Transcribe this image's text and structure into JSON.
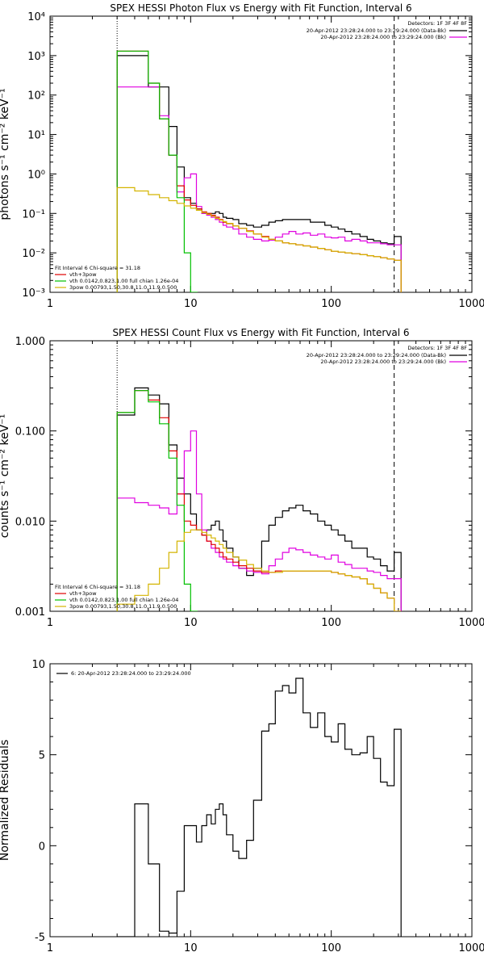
{
  "chart_data": [
    {
      "type": "line",
      "title": "SPEX HESSI Photon Flux vs Energy with Fit Function, Interval 6",
      "ylabel": "photons s⁻¹ cm⁻² keV⁻¹",
      "xlabel": "",
      "xscale": "log",
      "yscale": "log",
      "xlim": [
        1,
        1000
      ],
      "ylim": [
        0.001,
        10000
      ],
      "xticks": [
        {
          "v": 1,
          "label": "1"
        },
        {
          "v": 10,
          "label": "10"
        },
        {
          "v": 100,
          "label": "100"
        },
        {
          "v": 1000,
          "label": "1000"
        }
      ],
      "yticks": [
        {
          "v": 0.001,
          "label": "10⁻³"
        },
        {
          "v": 0.01,
          "label": "10⁻²"
        },
        {
          "v": 0.1,
          "label": "10⁻¹"
        },
        {
          "v": 1,
          "label": "10⁰"
        },
        {
          "v": 10,
          "label": "10¹"
        },
        {
          "v": 100,
          "label": "10²"
        },
        {
          "v": 1000,
          "label": "10³"
        },
        {
          "v": 10000,
          "label": "10⁴"
        }
      ],
      "vlines": [
        {
          "x": 3,
          "style": "dotted"
        },
        {
          "x": 280,
          "style": "dashed"
        }
      ],
      "legend_tr": {
        "heading": "Detectors: 1F 3F 4F 8F",
        "entries": [
          {
            "text": "20-Apr-2012 23:28:24.000 to 23:29:24.000 (Data-Bk)",
            "color": "#000000"
          },
          {
            "text": "20-Apr-2012 23:28:24.000 to 23:29:24.000 (Bk)",
            "color": "#e000e0"
          }
        ]
      },
      "legend_bl": {
        "heading": "Fit Interval 6   Chi-square = 31.18",
        "entries": [
          {
            "text": "vth+3pow",
            "color": "#e00000"
          },
          {
            "text": "vth 0.0142,0.823,1.00  full chian 1.26e-04",
            "color": "#00c000"
          },
          {
            "text": "3pow 0.00793,1.50,30.8,11.0,11.9,0.500",
            "color": "#d4b400"
          }
        ]
      },
      "series": [
        {
          "name": "Data-Bk",
          "color": "#000000",
          "step": true,
          "x": [
            3,
            4,
            5,
            6,
            7,
            8,
            9,
            10,
            11,
            12,
            13,
            14,
            15,
            16,
            17,
            18,
            20,
            22,
            25,
            28,
            32,
            36,
            40,
            45,
            50,
            56,
            63,
            71,
            80,
            90,
            100,
            112,
            125,
            140,
            160,
            180,
            200,
            224,
            250,
            280
          ],
          "y": [
            1000,
            1000,
            160,
            160,
            16,
            1.5,
            0.25,
            0.18,
            0.13,
            0.1,
            0.1,
            0.1,
            0.11,
            0.1,
            0.08,
            0.075,
            0.07,
            0.055,
            0.05,
            0.045,
            0.05,
            0.06,
            0.065,
            0.07,
            0.07,
            0.07,
            0.07,
            0.06,
            0.06,
            0.05,
            0.045,
            0.04,
            0.035,
            0.03,
            0.026,
            0.022,
            0.02,
            0.018,
            0.017,
            0.026
          ]
        },
        {
          "name": "Bk",
          "color": "#e000e0",
          "step": true,
          "x": [
            3,
            4,
            5,
            6,
            7,
            8,
            9,
            10,
            11,
            12,
            13,
            14,
            15,
            16,
            17,
            18,
            20,
            22,
            25,
            28,
            32,
            36,
            40,
            45,
            50,
            56,
            63,
            71,
            80,
            90,
            100,
            112,
            125,
            140,
            160,
            180,
            200,
            224,
            250,
            280
          ],
          "y": [
            160,
            160,
            160,
            30,
            3,
            0.35,
            0.8,
            1.0,
            0.15,
            0.1,
            0.09,
            0.08,
            0.07,
            0.06,
            0.05,
            0.045,
            0.04,
            0.03,
            0.025,
            0.022,
            0.02,
            0.021,
            0.025,
            0.03,
            0.035,
            0.03,
            0.032,
            0.028,
            0.03,
            0.025,
            0.024,
            0.025,
            0.02,
            0.022,
            0.02,
            0.018,
            0.018,
            0.017,
            0.016,
            0.016
          ]
        },
        {
          "name": "vth+3pow",
          "color": "#e00000",
          "step": true,
          "x": [
            3,
            4,
            5,
            6,
            7,
            8,
            9,
            10,
            11,
            12,
            13,
            14,
            15,
            16,
            17,
            18,
            20,
            22,
            25,
            28,
            32,
            36,
            40,
            45,
            50,
            56,
            63,
            71,
            80,
            90,
            100,
            112,
            125,
            140,
            160,
            180,
            200,
            224,
            250,
            280
          ],
          "y": [
            1300,
            1300,
            200,
            25,
            3,
            0.5,
            0.22,
            0.16,
            0.13,
            0.11,
            0.1,
            0.09,
            0.08,
            0.07,
            0.06,
            0.055,
            0.048,
            0.042,
            0.036,
            0.03,
            0.026,
            0.022,
            0.02,
            0.018,
            0.017,
            0.016,
            0.015,
            0.014,
            0.013,
            0.012,
            0.011,
            0.0105,
            0.01,
            0.0095,
            0.009,
            0.0085,
            0.008,
            0.0075,
            0.007,
            0.0065
          ]
        },
        {
          "name": "vth",
          "color": "#00c000",
          "step": true,
          "x": [
            3,
            4,
            5,
            6,
            7,
            8,
            9,
            10
          ],
          "y": [
            1300,
            1300,
            200,
            25,
            3,
            0.25,
            0.01,
            0.0009
          ]
        },
        {
          "name": "3pow",
          "color": "#d4b400",
          "step": true,
          "x": [
            3,
            4,
            5,
            6,
            7,
            8,
            9,
            10,
            11,
            12,
            13,
            14,
            15,
            16,
            17,
            18,
            20,
            22,
            25,
            28,
            32,
            36,
            40,
            45,
            50,
            56,
            63,
            71,
            80,
            90,
            100,
            112,
            125,
            140,
            160,
            180,
            200,
            224,
            250,
            280
          ],
          "y": [
            0.45,
            0.37,
            0.3,
            0.25,
            0.21,
            0.18,
            0.155,
            0.135,
            0.12,
            0.105,
            0.095,
            0.085,
            0.075,
            0.068,
            0.062,
            0.056,
            0.048,
            0.042,
            0.035,
            0.03,
            0.025,
            0.022,
            0.02,
            0.018,
            0.017,
            0.016,
            0.015,
            0.014,
            0.013,
            0.012,
            0.011,
            0.0105,
            0.01,
            0.0095,
            0.009,
            0.0085,
            0.008,
            0.0075,
            0.007,
            0.0065
          ]
        }
      ]
    },
    {
      "type": "line",
      "title": "SPEX HESSI Count Flux vs Energy with Fit Function, Interval 6",
      "ylabel": "counts s⁻¹ cm⁻² keV⁻¹",
      "xlabel": "",
      "xscale": "log",
      "yscale": "log",
      "xlim": [
        1,
        1000
      ],
      "ylim": [
        0.001,
        1.0
      ],
      "xticks": [
        {
          "v": 1,
          "label": "1"
        },
        {
          "v": 10,
          "label": "10"
        },
        {
          "v": 100,
          "label": "100"
        },
        {
          "v": 1000,
          "label": "1000"
        }
      ],
      "yticks": [
        {
          "v": 0.001,
          "label": "0.001"
        },
        {
          "v": 0.01,
          "label": "0.010"
        },
        {
          "v": 0.1,
          "label": "0.100"
        },
        {
          "v": 1,
          "label": "1.000"
        }
      ],
      "vlines": [
        {
          "x": 3,
          "style": "dotted"
        },
        {
          "x": 280,
          "style": "dashed"
        }
      ],
      "legend_tr": {
        "heading": "Detectors: 1F 3F 4F 8F",
        "entries": [
          {
            "text": "20-Apr-2012 23:28:24.000 to 23:29:24.000 (Data-Bk)",
            "color": "#000000"
          },
          {
            "text": "20-Apr-2012 23:28:24.000 to 23:29:24.000 (Bk)",
            "color": "#e000e0"
          }
        ]
      },
      "legend_bl": {
        "heading": "Fit Interval 6   Chi-square = 31.18",
        "entries": [
          {
            "text": "vth+3pow",
            "color": "#e00000"
          },
          {
            "text": "vth 0.0142,0.823,1.00  full chian 1.26e-04",
            "color": "#00c000"
          },
          {
            "text": "3pow 0.00793,1.50,30.8,11.0,11.9,0.500",
            "color": "#d4b400"
          }
        ]
      },
      "series": [
        {
          "name": "Data-Bk",
          "color": "#000000",
          "step": true,
          "x": [
            3,
            4,
            5,
            6,
            7,
            8,
            9,
            10,
            11,
            12,
            13,
            14,
            15,
            16,
            17,
            18,
            20,
            22,
            25,
            28,
            32,
            36,
            40,
            45,
            50,
            56,
            63,
            71,
            80,
            90,
            100,
            112,
            125,
            140,
            160,
            180,
            200,
            224,
            250,
            280
          ],
          "y": [
            0.15,
            0.3,
            0.25,
            0.2,
            0.07,
            0.03,
            0.02,
            0.012,
            0.008,
            0.007,
            0.008,
            0.009,
            0.01,
            0.008,
            0.006,
            0.005,
            0.004,
            0.003,
            0.0025,
            0.003,
            0.006,
            0.009,
            0.011,
            0.013,
            0.014,
            0.015,
            0.013,
            0.012,
            0.01,
            0.009,
            0.008,
            0.007,
            0.006,
            0.005,
            0.005,
            0.004,
            0.0038,
            0.0032,
            0.0028,
            0.0045
          ]
        },
        {
          "name": "Bk",
          "color": "#e000e0",
          "step": true,
          "x": [
            3,
            4,
            5,
            6,
            7,
            8,
            9,
            10,
            11,
            12,
            13,
            14,
            15,
            16,
            17,
            18,
            20,
            22,
            25,
            28,
            32,
            36,
            40,
            45,
            50,
            56,
            63,
            71,
            80,
            90,
            100,
            112,
            125,
            140,
            160,
            180,
            200,
            224,
            250,
            280
          ],
          "y": [
            0.018,
            0.016,
            0.015,
            0.014,
            0.012,
            0.02,
            0.06,
            0.1,
            0.02,
            0.008,
            0.006,
            0.005,
            0.0045,
            0.004,
            0.0038,
            0.0035,
            0.0032,
            0.003,
            0.0028,
            0.0027,
            0.0026,
            0.0032,
            0.0038,
            0.0045,
            0.005,
            0.0048,
            0.0045,
            0.0042,
            0.004,
            0.0038,
            0.0042,
            0.0035,
            0.0033,
            0.003,
            0.003,
            0.0028,
            0.0027,
            0.0025,
            0.0023,
            0.0023
          ]
        },
        {
          "name": "vth+3pow",
          "color": "#e00000",
          "step": true,
          "x": [
            3,
            4,
            5,
            6,
            7,
            8,
            9,
            10,
            11,
            12,
            13,
            14,
            15,
            16,
            17,
            18,
            20,
            22,
            25,
            28,
            32,
            36,
            40,
            45,
            50,
            56,
            63,
            71,
            80,
            90,
            100,
            112,
            125,
            140,
            160,
            180,
            200,
            224,
            250,
            280
          ],
          "y": [
            0.16,
            0.28,
            0.22,
            0.14,
            0.06,
            0.02,
            0.01,
            0.009,
            0.008,
            0.007,
            0.006,
            0.0055,
            0.005,
            0.0045,
            0.004,
            0.0038,
            0.0035,
            0.0032,
            0.003,
            0.0028,
            0.0027,
            0.0027,
            0.0028,
            0.0028,
            0.0028,
            0.0028,
            0.0028,
            0.0028,
            0.0028,
            0.0028,
            0.0027,
            0.0026,
            0.0025,
            0.0024,
            0.0023,
            0.002,
            0.0018,
            0.0016,
            0.0014,
            0.001
          ]
        },
        {
          "name": "vth",
          "color": "#00c000",
          "step": true,
          "x": [
            3,
            4,
            5,
            6,
            7,
            8,
            9,
            10
          ],
          "y": [
            0.16,
            0.28,
            0.21,
            0.12,
            0.05,
            0.015,
            0.002,
            0.0009
          ]
        },
        {
          "name": "3pow",
          "color": "#d4b400",
          "step": true,
          "x": [
            3,
            4,
            5,
            6,
            7,
            8,
            9,
            10,
            11,
            12,
            13,
            14,
            15,
            16,
            17,
            18,
            20,
            22,
            25,
            28,
            32,
            36,
            40,
            45,
            50,
            56,
            63,
            71,
            80,
            90,
            100,
            112,
            125,
            140,
            160,
            180,
            200,
            224,
            250,
            280
          ],
          "y": [
            0.0012,
            0.0015,
            0.002,
            0.003,
            0.0045,
            0.006,
            0.0075,
            0.008,
            0.008,
            0.0075,
            0.007,
            0.0065,
            0.006,
            0.0055,
            0.005,
            0.0045,
            0.004,
            0.0037,
            0.0033,
            0.003,
            0.0028,
            0.0027,
            0.0027,
            0.0028,
            0.0028,
            0.0028,
            0.0028,
            0.0028,
            0.0028,
            0.0028,
            0.0027,
            0.0026,
            0.0025,
            0.0024,
            0.0023,
            0.002,
            0.0018,
            0.0016,
            0.0014,
            0.001
          ]
        }
      ]
    },
    {
      "type": "line",
      "title": "",
      "ylabel": "Normalized Residuals",
      "xlabel": "",
      "xscale": "log",
      "yscale": "linear",
      "xlim": [
        1,
        1000
      ],
      "ylim": [
        -5,
        10
      ],
      "xticks": [
        {
          "v": 1,
          "label": "1"
        },
        {
          "v": 10,
          "label": "10"
        },
        {
          "v": 100,
          "label": "100"
        },
        {
          "v": 1000,
          "label": "1000"
        }
      ],
      "yticks": [
        {
          "v": -5,
          "label": "-5"
        },
        {
          "v": 0,
          "label": "0"
        },
        {
          "v": 5,
          "label": "5"
        },
        {
          "v": 10,
          "label": "10"
        }
      ],
      "vlines": [],
      "legend_tl": {
        "entries": [
          {
            "text": "6: 20-Apr-2012 23:28:24.000 to 23:29:24.000",
            "color": "#000000"
          }
        ]
      },
      "series": [
        {
          "name": "6: 20-Apr-2012 23:28:24.000 to 23:29:24.000",
          "color": "#000000",
          "step": true,
          "x": [
            3,
            4,
            5,
            6,
            7,
            8,
            9,
            10,
            11,
            12,
            13,
            14,
            15,
            16,
            17,
            18,
            20,
            22,
            25,
            28,
            32,
            36,
            40,
            45,
            50,
            56,
            63,
            71,
            80,
            90,
            100,
            112,
            125,
            140,
            160,
            180,
            200,
            224,
            250,
            280
          ],
          "y": [
            -5,
            2.3,
            -1,
            -4.7,
            -4.8,
            -2.5,
            1.1,
            1.1,
            0.2,
            1.1,
            1.7,
            1.2,
            2.0,
            2.3,
            1.7,
            0.6,
            -0.3,
            -0.7,
            0.3,
            2.5,
            6.3,
            6.7,
            8.5,
            8.8,
            8.4,
            9.2,
            7.3,
            6.5,
            7.3,
            6.0,
            5.7,
            6.7,
            5.3,
            5.0,
            5.1,
            6.0,
            4.8,
            3.5,
            3.3,
            6.4
          ]
        }
      ]
    }
  ]
}
